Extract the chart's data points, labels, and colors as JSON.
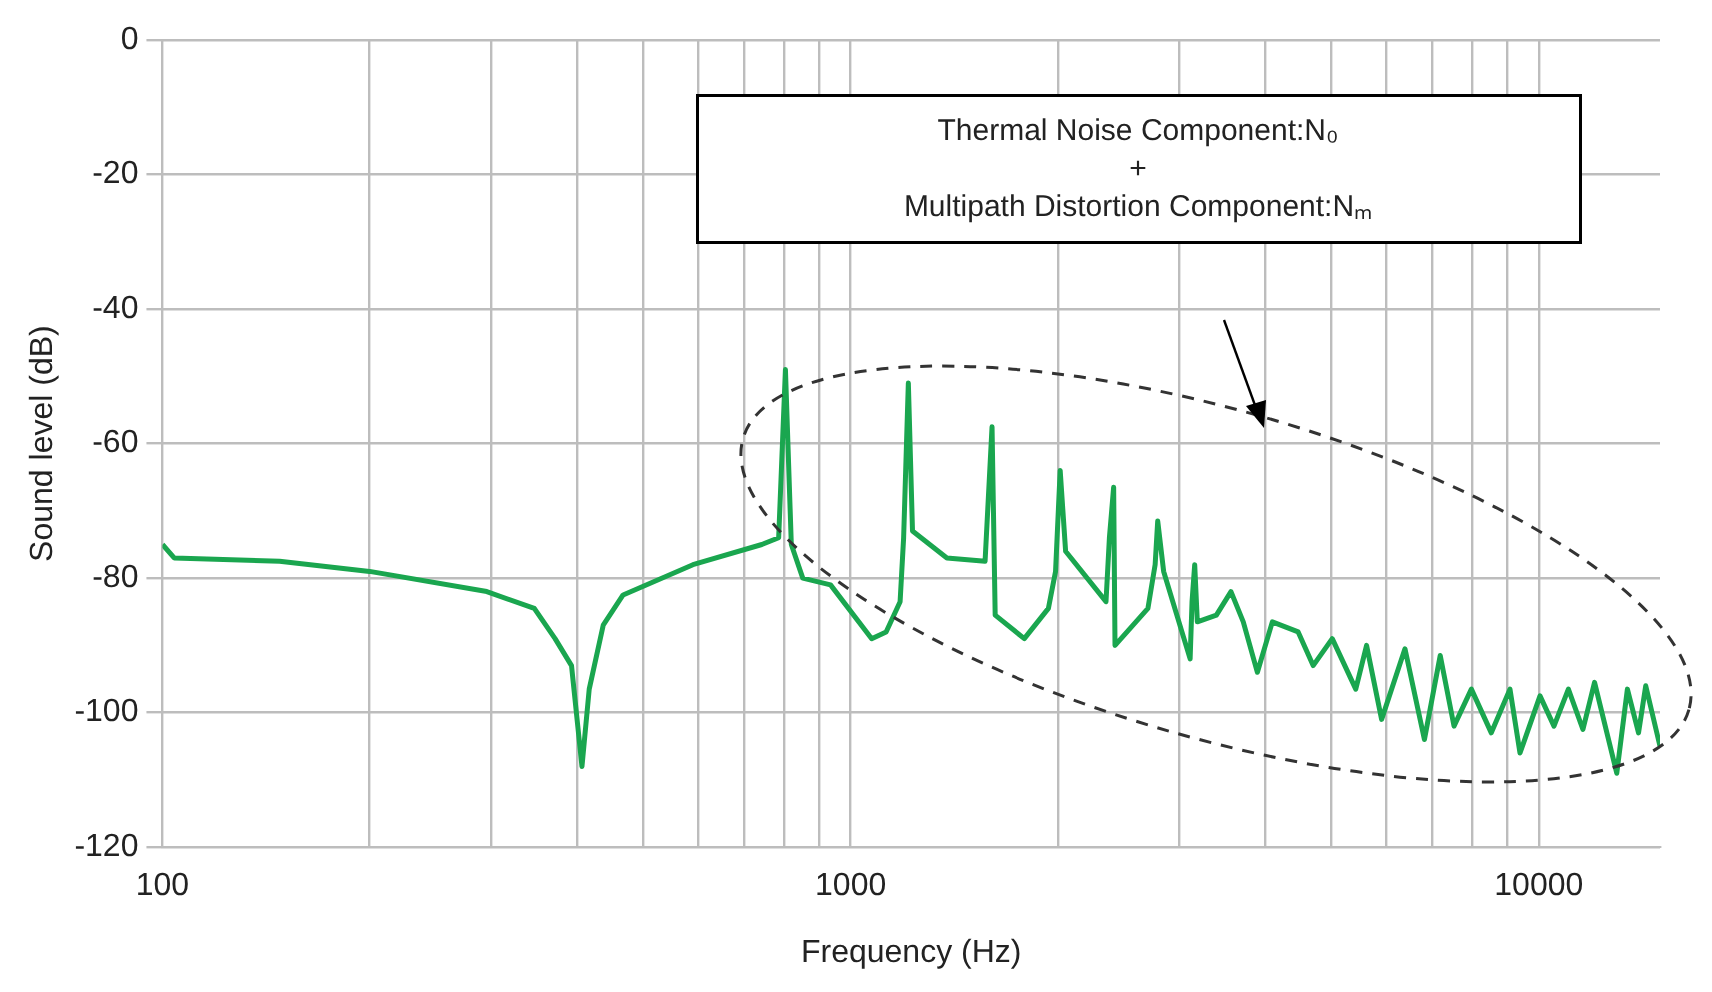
{
  "chart_data": {
    "type": "line",
    "xlabel": "Frequency (Hz)",
    "ylabel": "Sound level (dB)",
    "log": "x",
    "grid": true,
    "legend": false,
    "marker": "none",
    "line_style": "solid",
    "xlim": [
      100,
      15000
    ],
    "ylim": [
      -120,
      0
    ],
    "xticks": [
      100,
      {
        "value": 200,
        "label": null
      },
      {
        "value": 300,
        "label": null
      },
      {
        "value": 400,
        "label": null
      },
      {
        "value": 500,
        "label": null
      },
      {
        "value": 600,
        "label": null
      },
      {
        "value": 700,
        "label": null
      },
      {
        "value": 800,
        "label": null
      },
      {
        "value": 900,
        "label": null
      },
      1000,
      {
        "value": 2000,
        "label": null
      },
      {
        "value": 3000,
        "label": null
      },
      {
        "value": 4000,
        "label": null
      },
      {
        "value": 5000,
        "label": null
      },
      {
        "value": 6000,
        "label": null
      },
      {
        "value": 7000,
        "label": null
      },
      {
        "value": 8000,
        "label": null
      },
      {
        "value": 9000,
        "label": null
      },
      10000
    ],
    "yticks": [
      -120,
      -100,
      -80,
      -60,
      -40,
      -20,
      0
    ],
    "annotations": [
      "Thermal Noise Component:N₀\n+\nMultipath Distortion Component:Nₘ"
    ],
    "series": [
      {
        "color": "#1aa64f",
        "x": [
          100,
          104,
          148,
          200,
          296,
          347,
          372,
          393,
          407,
          417,
          437,
          467,
          590,
          743,
          786,
          804,
          820,
          852,
          935,
          1073,
          1126,
          1180,
          1194,
          1213,
          1230,
          1380,
          1568,
          1605,
          1622,
          1788,
          1938,
          1985,
          2016,
          2053,
          2350,
          2377,
          2411,
          2422,
          2704,
          2770,
          2794,
          2850,
          3114,
          3134,
          3162,
          3190,
          3400,
          3570,
          3720,
          3900,
          4100,
          4470,
          4700,
          5010,
          5420,
          5620,
          5910,
          6390,
          6820,
          7190,
          7530,
          7980,
          8530,
          9080,
          9390,
          10040,
          10520,
          11040,
          11590,
          12050,
          12980,
          13450,
          13960,
          14300,
          15000
        ],
        "values": [
          -75,
          -77,
          -77.5,
          -79,
          -82,
          -84.5,
          -89,
          -93,
          -108,
          -96.5,
          -87,
          -82.5,
          -78,
          -75,
          -74,
          -49,
          -75,
          -80,
          -81,
          -89,
          -88,
          -83.5,
          -74,
          -51,
          -73,
          -77,
          -77.5,
          -57.5,
          -85.5,
          -89,
          -84.5,
          -79,
          -64,
          -76,
          -83.5,
          -74,
          -66.5,
          -90,
          -84.5,
          -78,
          -71.5,
          -79,
          -92,
          -83.5,
          -78,
          -86.5,
          -85.5,
          -82,
          -86.5,
          -94,
          -86.5,
          -88,
          -93,
          -89,
          -96.5,
          -90,
          -101,
          -90.5,
          -104,
          -91.5,
          -102,
          -96.5,
          -103,
          -96.5,
          -106,
          -97.5,
          -102,
          -96.5,
          -102.5,
          -95.5,
          -109,
          -96.5,
          -103,
          -96,
          -105
        ]
      }
    ]
  }
}
